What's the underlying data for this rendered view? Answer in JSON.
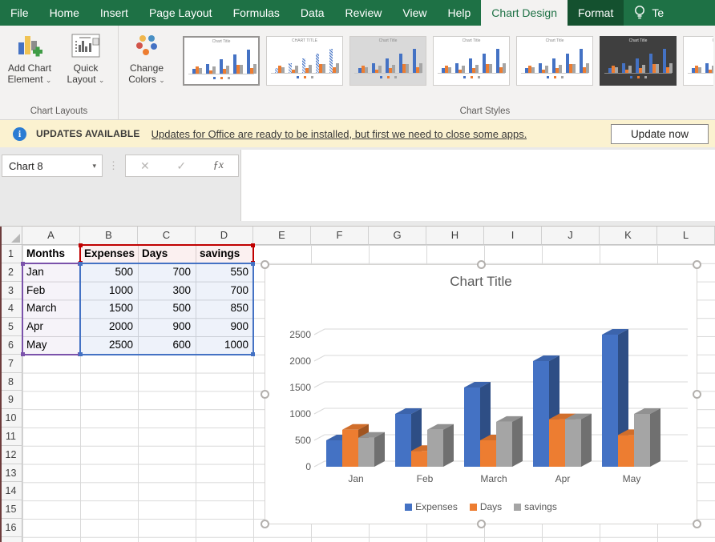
{
  "menu": {
    "tabs": [
      {
        "label": "File",
        "state": "normal"
      },
      {
        "label": "Home",
        "state": "normal"
      },
      {
        "label": "Insert",
        "state": "normal"
      },
      {
        "label": "Page Layout",
        "state": "normal"
      },
      {
        "label": "Formulas",
        "state": "normal"
      },
      {
        "label": "Data",
        "state": "normal"
      },
      {
        "label": "Review",
        "state": "normal"
      },
      {
        "label": "View",
        "state": "normal"
      },
      {
        "label": "Help",
        "state": "normal"
      },
      {
        "label": "Chart Design",
        "state": "active"
      },
      {
        "label": "Format",
        "state": "highlighted"
      }
    ],
    "tell_me_text": "Te"
  },
  "ribbon": {
    "buttons": {
      "add_chart_element": {
        "label_line1": "Add Chart",
        "label_line2": "Element"
      },
      "quick_layout": {
        "label_line1": "Quick",
        "label_line2": "Layout"
      },
      "change_colors": {
        "label_line1": "Change",
        "label_line2": "Colors"
      }
    },
    "group_labels": {
      "chart_layouts": "Chart Layouts",
      "chart_styles": "Chart Styles"
    },
    "style_gallery": [
      {
        "name": "Style 1",
        "variant": "selected"
      },
      {
        "name": "Style 2",
        "variant": "hatched"
      },
      {
        "name": "Style 3",
        "variant": "gray"
      },
      {
        "name": "Style 4",
        "variant": "light"
      },
      {
        "name": "Style 5",
        "variant": "light"
      },
      {
        "name": "Style 6",
        "variant": "dark"
      },
      {
        "name": "Style 7",
        "variant": "light"
      }
    ]
  },
  "notification": {
    "label": "UPDATES AVAILABLE",
    "message": "Updates for Office are ready to be installed, but first we need to close some apps.",
    "button_label": "Update now"
  },
  "formula_bar": {
    "name_box_value": "Chart 8"
  },
  "ui_icons": {
    "dropdown_arrow": "▾",
    "caret_down": "⌄",
    "vertical_dots": "⋮",
    "cancel": "✕",
    "enter": "✓",
    "function": "ƒx",
    "info": "i"
  },
  "sheet": {
    "visible_columns": [
      "A",
      "B",
      "C",
      "D",
      "E",
      "F",
      "G",
      "H",
      "I",
      "J",
      "K",
      "L"
    ],
    "visible_row_count": 17,
    "table": {
      "headers": [
        "Months",
        "Expenses",
        "Days",
        "savings"
      ],
      "rows": [
        [
          "Jan",
          "500",
          "700",
          "550"
        ],
        [
          "Feb",
          "1000",
          "300",
          "700"
        ],
        [
          "March",
          "1500",
          "500",
          "850"
        ],
        [
          "Apr",
          "2000",
          "900",
          "900"
        ],
        [
          "May",
          "2500",
          "600",
          "1000"
        ]
      ]
    }
  },
  "chart_data": {
    "type": "bar",
    "style": "3d-clustered-column",
    "title": "Chart Title",
    "categories": [
      "Jan",
      "Feb",
      "March",
      "Apr",
      "May"
    ],
    "series": [
      {
        "name": "Expenses",
        "color": "#4472C4",
        "values": [
          500,
          1000,
          1500,
          2000,
          2500
        ]
      },
      {
        "name": "Days",
        "color": "#ED7D31",
        "values": [
          700,
          300,
          500,
          900,
          600
        ]
      },
      {
        "name": "savings",
        "color": "#A5A5A5",
        "values": [
          550,
          700,
          850,
          900,
          1000
        ]
      }
    ],
    "ylim": [
      0,
      2500
    ],
    "ytick_step": 500,
    "grid": true,
    "legend_position": "bottom"
  },
  "colors": {
    "ribbon_green": "#1E7145",
    "format_tab_green": "#14512F",
    "notification_bg": "#FBF2D0",
    "info_icon_blue": "#2B7CD3",
    "range_red": "#C00000",
    "range_purple": "#7B52AB",
    "range_blue": "#4472C4",
    "axis_text": "#595959"
  }
}
